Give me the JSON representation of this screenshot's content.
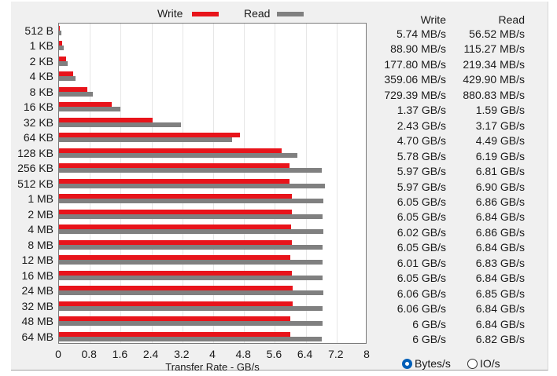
{
  "legend": {
    "write_label": "Write",
    "read_label": "Read",
    "write_color": "#e8141b",
    "read_color": "#808080"
  },
  "table": {
    "write_header": "Write",
    "read_header": "Read",
    "rows": [
      {
        "write": "5.74 MB/s",
        "read": "56.52 MB/s"
      },
      {
        "write": "88.90 MB/s",
        "read": "115.27 MB/s"
      },
      {
        "write": "177.80 MB/s",
        "read": "219.34 MB/s"
      },
      {
        "write": "359.06 MB/s",
        "read": "429.90 MB/s"
      },
      {
        "write": "729.39 MB/s",
        "read": "880.83 MB/s"
      },
      {
        "write": "1.37 GB/s",
        "read": "1.59 GB/s"
      },
      {
        "write": "2.43 GB/s",
        "read": "3.17 GB/s"
      },
      {
        "write": "4.70 GB/s",
        "read": "4.49 GB/s"
      },
      {
        "write": "5.78 GB/s",
        "read": "6.19 GB/s"
      },
      {
        "write": "5.97 GB/s",
        "read": "6.81 GB/s"
      },
      {
        "write": "5.97 GB/s",
        "read": "6.90 GB/s"
      },
      {
        "write": "6.05 GB/s",
        "read": "6.86 GB/s"
      },
      {
        "write": "6.05 GB/s",
        "read": "6.84 GB/s"
      },
      {
        "write": "6.02 GB/s",
        "read": "6.86 GB/s"
      },
      {
        "write": "6.05 GB/s",
        "read": "6.84 GB/s"
      },
      {
        "write": "6.01 GB/s",
        "read": "6.83 GB/s"
      },
      {
        "write": "6.05 GB/s",
        "read": "6.84 GB/s"
      },
      {
        "write": "6.06 GB/s",
        "read": "6.85 GB/s"
      },
      {
        "write": "6.06 GB/s",
        "read": "6.84 GB/s"
      },
      {
        "write": "6 GB/s",
        "read": "6.84 GB/s"
      },
      {
        "write": "6 GB/s",
        "read": "6.82 GB/s"
      }
    ]
  },
  "units": {
    "options": [
      {
        "label": "Bytes/s",
        "selected": true
      },
      {
        "label": "IO/s",
        "selected": false
      }
    ]
  },
  "chart_data": {
    "type": "bar",
    "orientation": "horizontal",
    "title": "",
    "xlabel": "Transfer Rate - GB/s",
    "ylabel": "",
    "xlim": [
      0,
      8
    ],
    "xticks": [
      "0",
      "0.8",
      "1.6",
      "2.4",
      "3.2",
      "4",
      "4.8",
      "5.6",
      "6.4",
      "7.2",
      "8"
    ],
    "grid": true,
    "legend_position": "top",
    "categories": [
      "512 B",
      "1 KB",
      "2 KB",
      "4 KB",
      "8 KB",
      "16 KB",
      "32 KB",
      "64 KB",
      "128 KB",
      "256 KB",
      "512 KB",
      "1 MB",
      "2 MB",
      "4 MB",
      "8 MB",
      "12 MB",
      "16 MB",
      "24 MB",
      "32 MB",
      "48 MB",
      "64 MB"
    ],
    "series": [
      {
        "name": "Write",
        "color": "#e8141b",
        "values": [
          0.00574,
          0.0889,
          0.1778,
          0.35906,
          0.72939,
          1.37,
          2.43,
          4.7,
          5.78,
          5.97,
          5.97,
          6.05,
          6.05,
          6.02,
          6.05,
          6.01,
          6.05,
          6.06,
          6.06,
          6.0,
          6.0
        ]
      },
      {
        "name": "Read",
        "color": "#808080",
        "values": [
          0.05652,
          0.11527,
          0.21934,
          0.4299,
          0.88083,
          1.59,
          3.17,
          4.49,
          6.19,
          6.81,
          6.9,
          6.86,
          6.84,
          6.86,
          6.84,
          6.83,
          6.84,
          6.85,
          6.84,
          6.84,
          6.82
        ]
      }
    ]
  }
}
